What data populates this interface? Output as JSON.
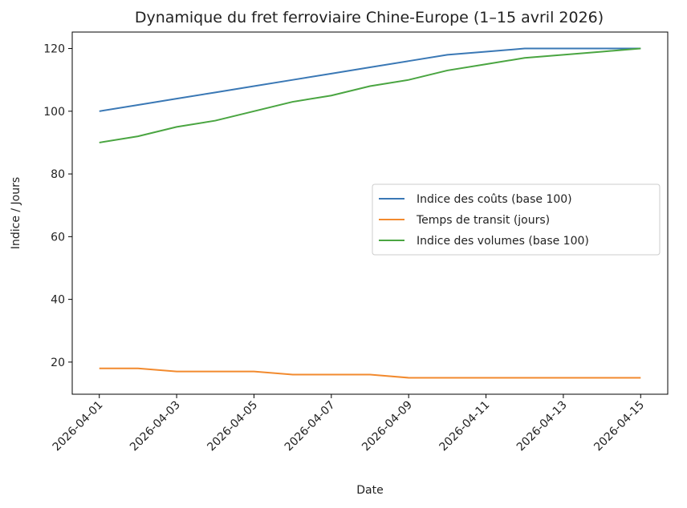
{
  "chart_data": {
    "type": "line",
    "title": "Dynamique du fret ferroviaire Chine-Europe (1–15 avril 2026)",
    "x_label": "Date",
    "y_label": "Indice / Jours",
    "x": [
      "2026-04-01",
      "2026-04-02",
      "2026-04-03",
      "2026-04-04",
      "2026-04-05",
      "2026-04-06",
      "2026-04-07",
      "2026-04-08",
      "2026-04-09",
      "2026-04-10",
      "2026-04-11",
      "2026-04-12",
      "2026-04-13",
      "2026-04-14",
      "2026-04-15"
    ],
    "series": [
      {
        "name": "Indice des coûts (base 100)",
        "color": "#3a78b5",
        "values": [
          100,
          102,
          104,
          106,
          108,
          110,
          112,
          114,
          116,
          118,
          119,
          120,
          120,
          120,
          120
        ]
      },
      {
        "name": "Temps de transit (jours)",
        "color": "#f28a2e",
        "values": [
          18,
          18,
          17,
          17,
          17,
          16,
          16,
          16,
          15,
          15,
          15,
          15,
          15,
          15,
          15
        ]
      },
      {
        "name": "Indice des volumes (base 100)",
        "color": "#4aa541",
        "values": [
          90,
          92,
          95,
          97,
          100,
          103,
          105,
          108,
          110,
          113,
          115,
          117,
          118,
          119,
          120
        ]
      }
    ],
    "xlim": [
      "2026-03-31T07:12:00Z",
      "2026-04-15T16:48:00Z"
    ],
    "xticks": [
      "2026-04-01",
      "2026-04-03",
      "2026-04-05",
      "2026-04-07",
      "2026-04-09",
      "2026-04-11",
      "2026-04-13",
      "2026-04-15"
    ],
    "ylim": [
      9.75,
      125.25
    ],
    "yticks": [
      20,
      40,
      60,
      80,
      100,
      120
    ],
    "legend": "center right"
  }
}
